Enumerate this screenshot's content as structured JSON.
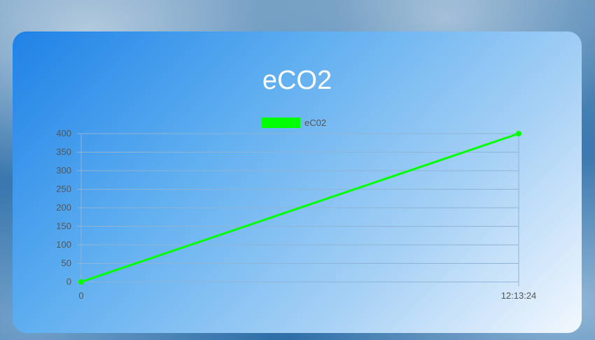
{
  "chart_data": {
    "type": "line",
    "title": "eCO2",
    "xlabel": "",
    "ylabel": "",
    "x": [
      "0",
      "12:13:24"
    ],
    "series": [
      {
        "name": "eC02",
        "values": [
          0,
          400
        ],
        "color": "#00ff00"
      }
    ],
    "ylim": [
      0,
      400
    ],
    "yticks": [
      0,
      50,
      100,
      150,
      200,
      250,
      300,
      350,
      400
    ],
    "grid": true,
    "legend": "top-center"
  },
  "colors": {
    "line": "#00ff00",
    "grid": "#8fb4d6",
    "axis_text": "#555555",
    "title": "#ffffff"
  }
}
